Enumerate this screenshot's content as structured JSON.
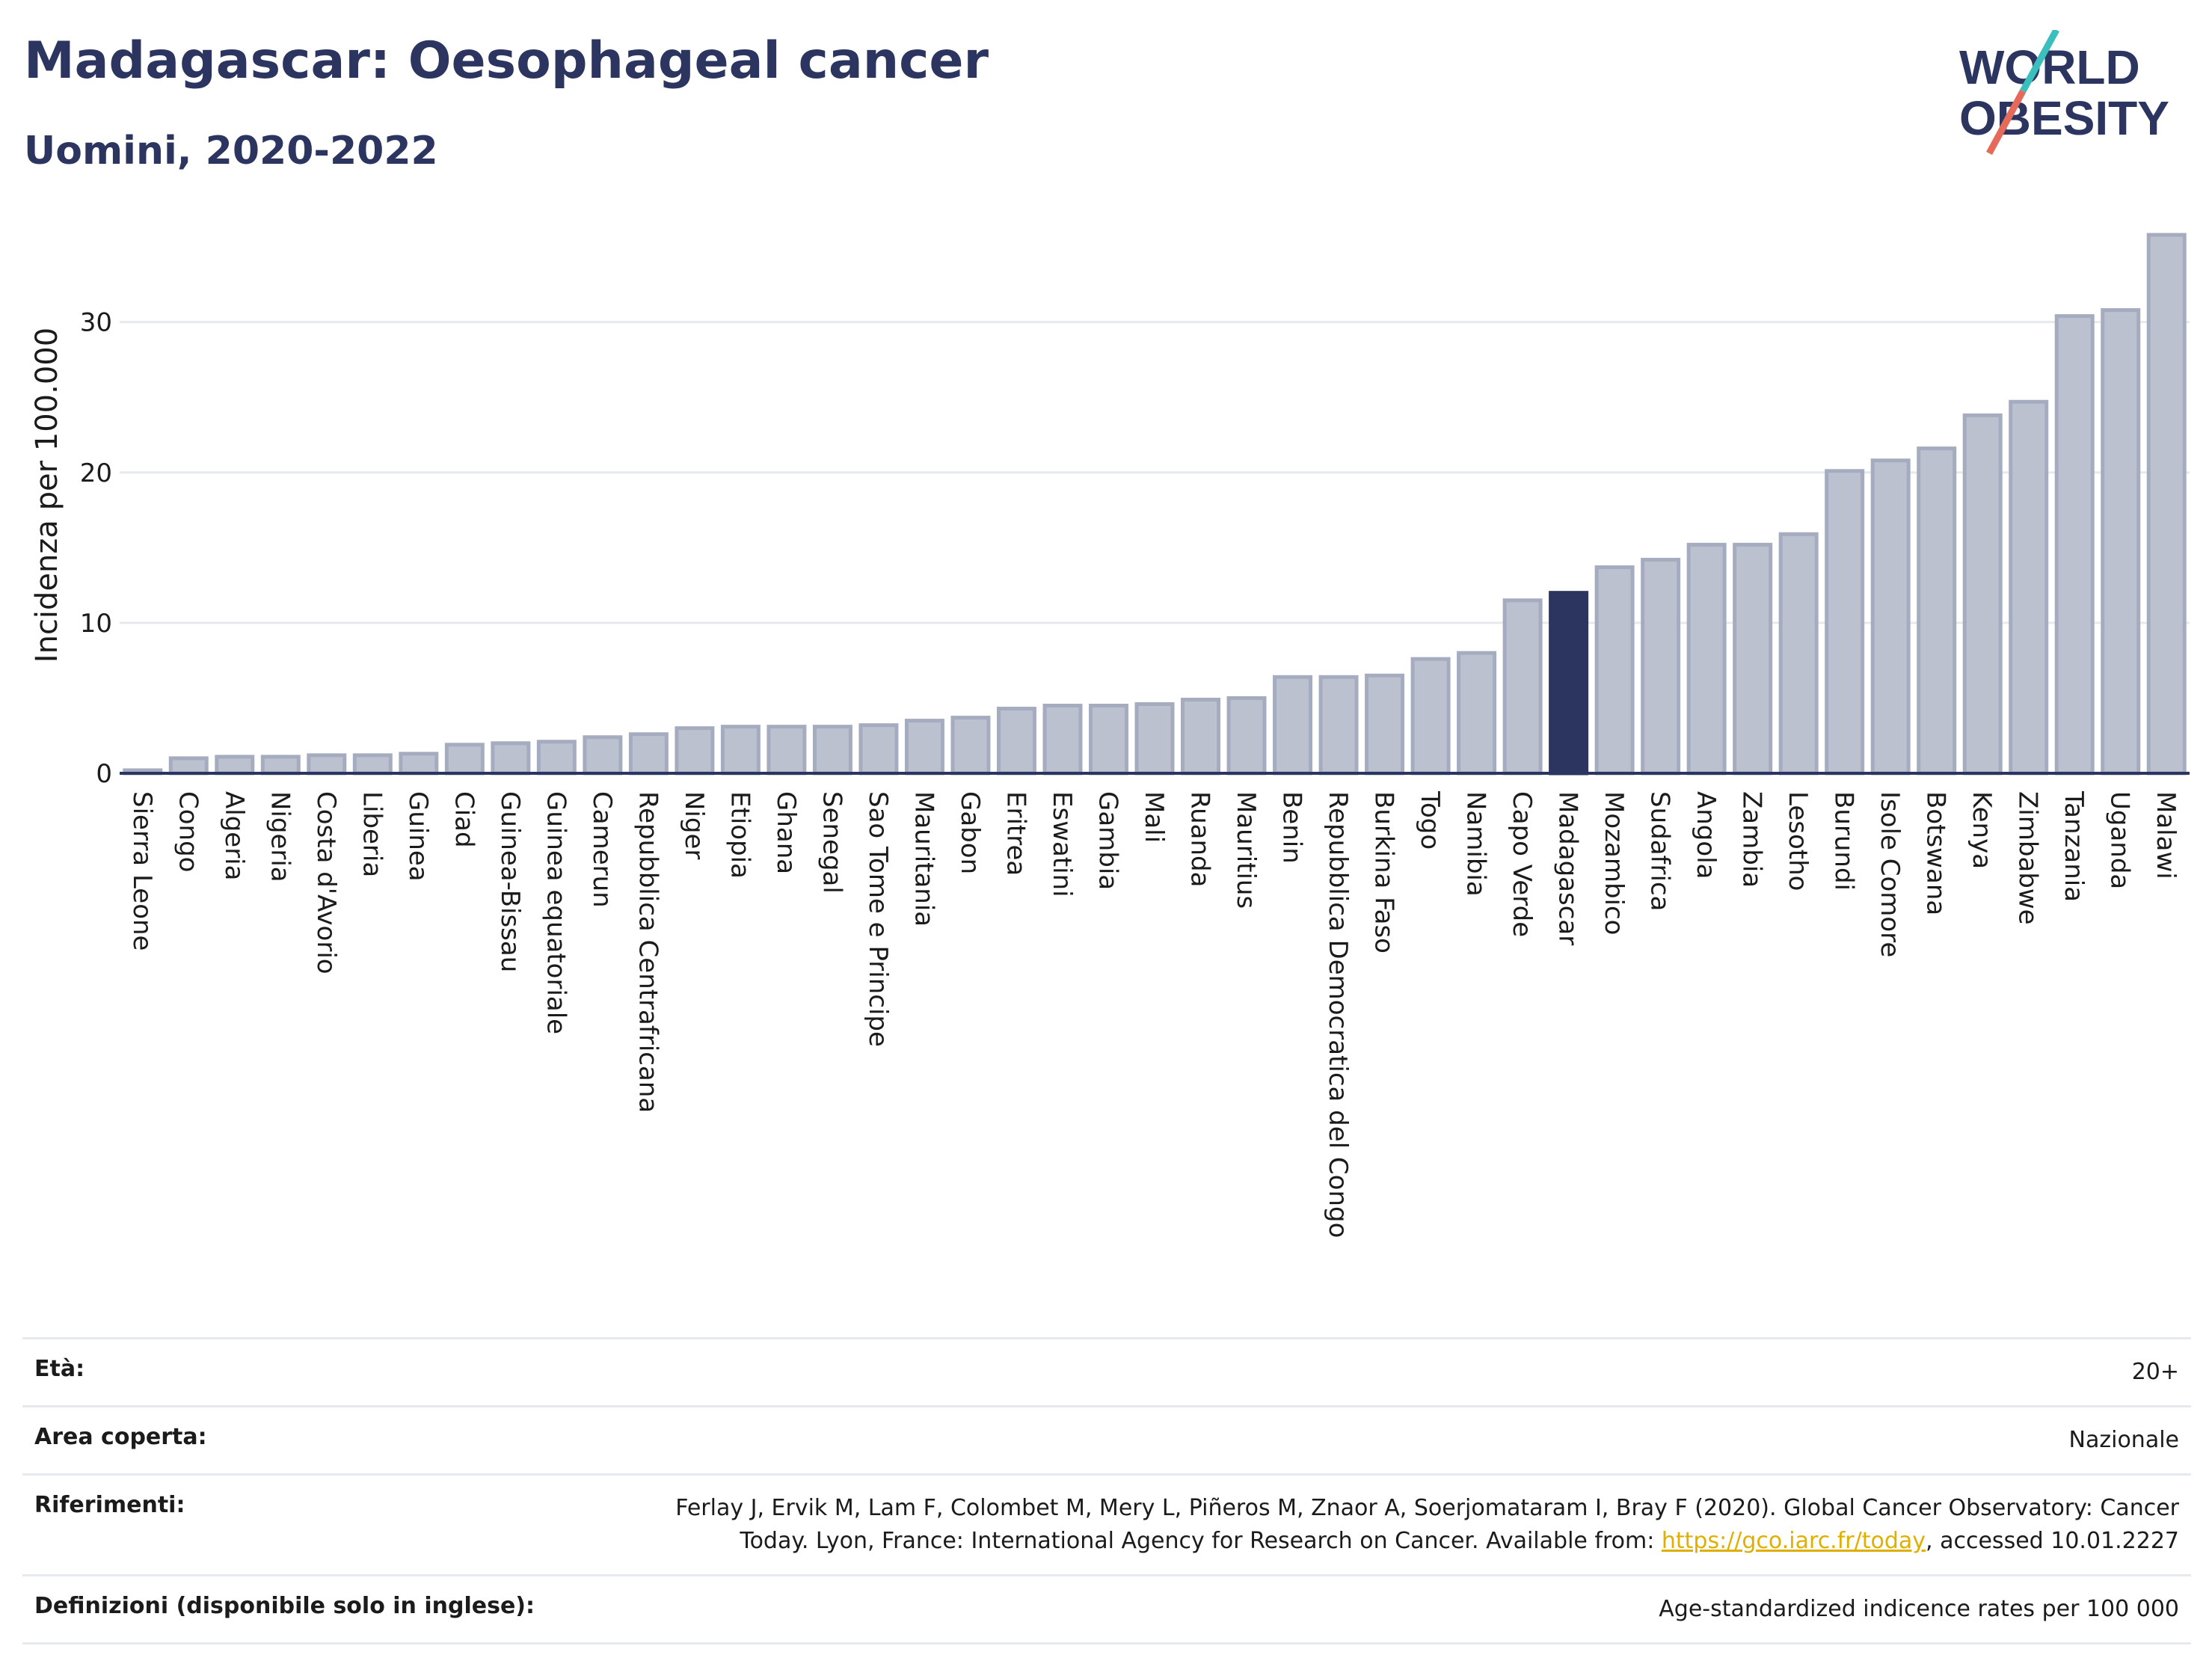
{
  "header": {
    "title": "Madagascar: Oesophageal cancer",
    "subtitle": "Uomini, 2020-2022",
    "logo_line1": "WORLD",
    "logo_line2": "OBESITY"
  },
  "colors": {
    "title": "#2c3560",
    "bar": "#bcc1cf",
    "bar_stroke": "#a6acbf",
    "highlight": "#2c3560",
    "grid": "#e6eaee",
    "link": "#e0b000",
    "logo_slash_top": "#3bbfbd",
    "logo_slash_bottom": "#e56a5a"
  },
  "chart_data": {
    "type": "bar",
    "ylabel": "Incidenza per 100.000",
    "ylim": [
      0,
      36
    ],
    "yticks": [
      0,
      10,
      20,
      30
    ],
    "grid": true,
    "highlight": "Madagascar",
    "categories": [
      "Sierra Leone",
      "Congo",
      "Algeria",
      "Nigeria",
      "Costa d'Avorio",
      "Liberia",
      "Guinea",
      "Ciad",
      "Guinea-Bissau",
      "Guinea equatoriale",
      "Camerun",
      "Repubblica Centrafricana",
      "Niger",
      "Etiopia",
      "Ghana",
      "Senegal",
      "Sao Tome e Principe",
      "Mauritania",
      "Gabon",
      "Eritrea",
      "Eswatini",
      "Gambia",
      "Mali",
      "Ruanda",
      "Mauritius",
      "Benin",
      "Repubblica Democratica del Congo",
      "Burkina Faso",
      "Togo",
      "Namibia",
      "Capo Verde",
      "Madagascar",
      "Mozambico",
      "Sudafrica",
      "Angola",
      "Zambia",
      "Lesotho",
      "Burundi",
      "Isole Comore",
      "Botswana",
      "Kenya",
      "Zimbabwe",
      "Tanzania",
      "Uganda",
      "Malawi"
    ],
    "values": [
      0.2,
      1.0,
      1.1,
      1.1,
      1.2,
      1.2,
      1.3,
      1.9,
      2.0,
      2.1,
      2.4,
      2.6,
      3.0,
      3.1,
      3.1,
      3.1,
      3.2,
      3.5,
      3.7,
      4.3,
      4.5,
      4.5,
      4.6,
      4.9,
      5.0,
      6.4,
      6.4,
      6.5,
      7.6,
      8.0,
      11.5,
      12.0,
      13.7,
      14.2,
      15.2,
      15.2,
      15.9,
      20.1,
      20.8,
      21.6,
      23.8,
      24.7,
      30.4,
      30.8,
      35.8
    ]
  },
  "meta": [
    {
      "label": "Età:",
      "value": "20+"
    },
    {
      "label": "Area coperta:",
      "value": "Nazionale"
    },
    {
      "label": "Riferimenti:",
      "value_pre": "Ferlay J, Ervik M, Lam F, Colombet M, Mery L, Piñeros M, Znaor A, Soerjomataram I, Bray F (2020). Global Cancer Observatory: Cancer Today. Lyon, France: International Agency for Research on Cancer. Available from: ",
      "link": "https://gco.iarc.fr/today",
      "value_post": ", accessed 10.01.2227"
    },
    {
      "label": "Definizioni (disponibile solo in inglese):",
      "value": "Age-standardized indicence rates per 100 000"
    }
  ]
}
